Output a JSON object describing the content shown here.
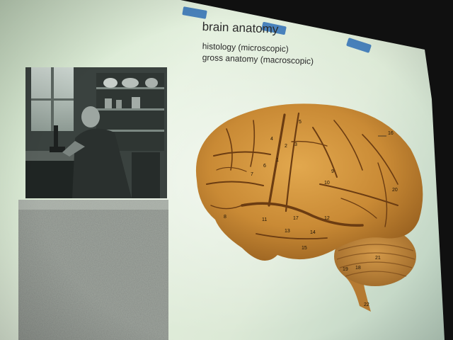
{
  "slide": {
    "title": "brain anatomy",
    "subtitle_1": "histology (microscopic)",
    "subtitle_2": "gross anatomy (macroscopic)",
    "tape_color": "#2e6fb6",
    "screen_color": "#dce9d6"
  },
  "brain_labels": [
    "1",
    "2",
    "3",
    "4",
    "5",
    "6",
    "7",
    "8",
    "9",
    "10",
    "11",
    "12",
    "13",
    "14",
    "15",
    "16",
    "17",
    "18",
    "19",
    "20",
    "21",
    "22"
  ],
  "images": {
    "scientist_photo": "scientist-at-microscope",
    "tissue_photo": "histology-micrograph",
    "brain_photo": "human-brain-lateral-view"
  }
}
